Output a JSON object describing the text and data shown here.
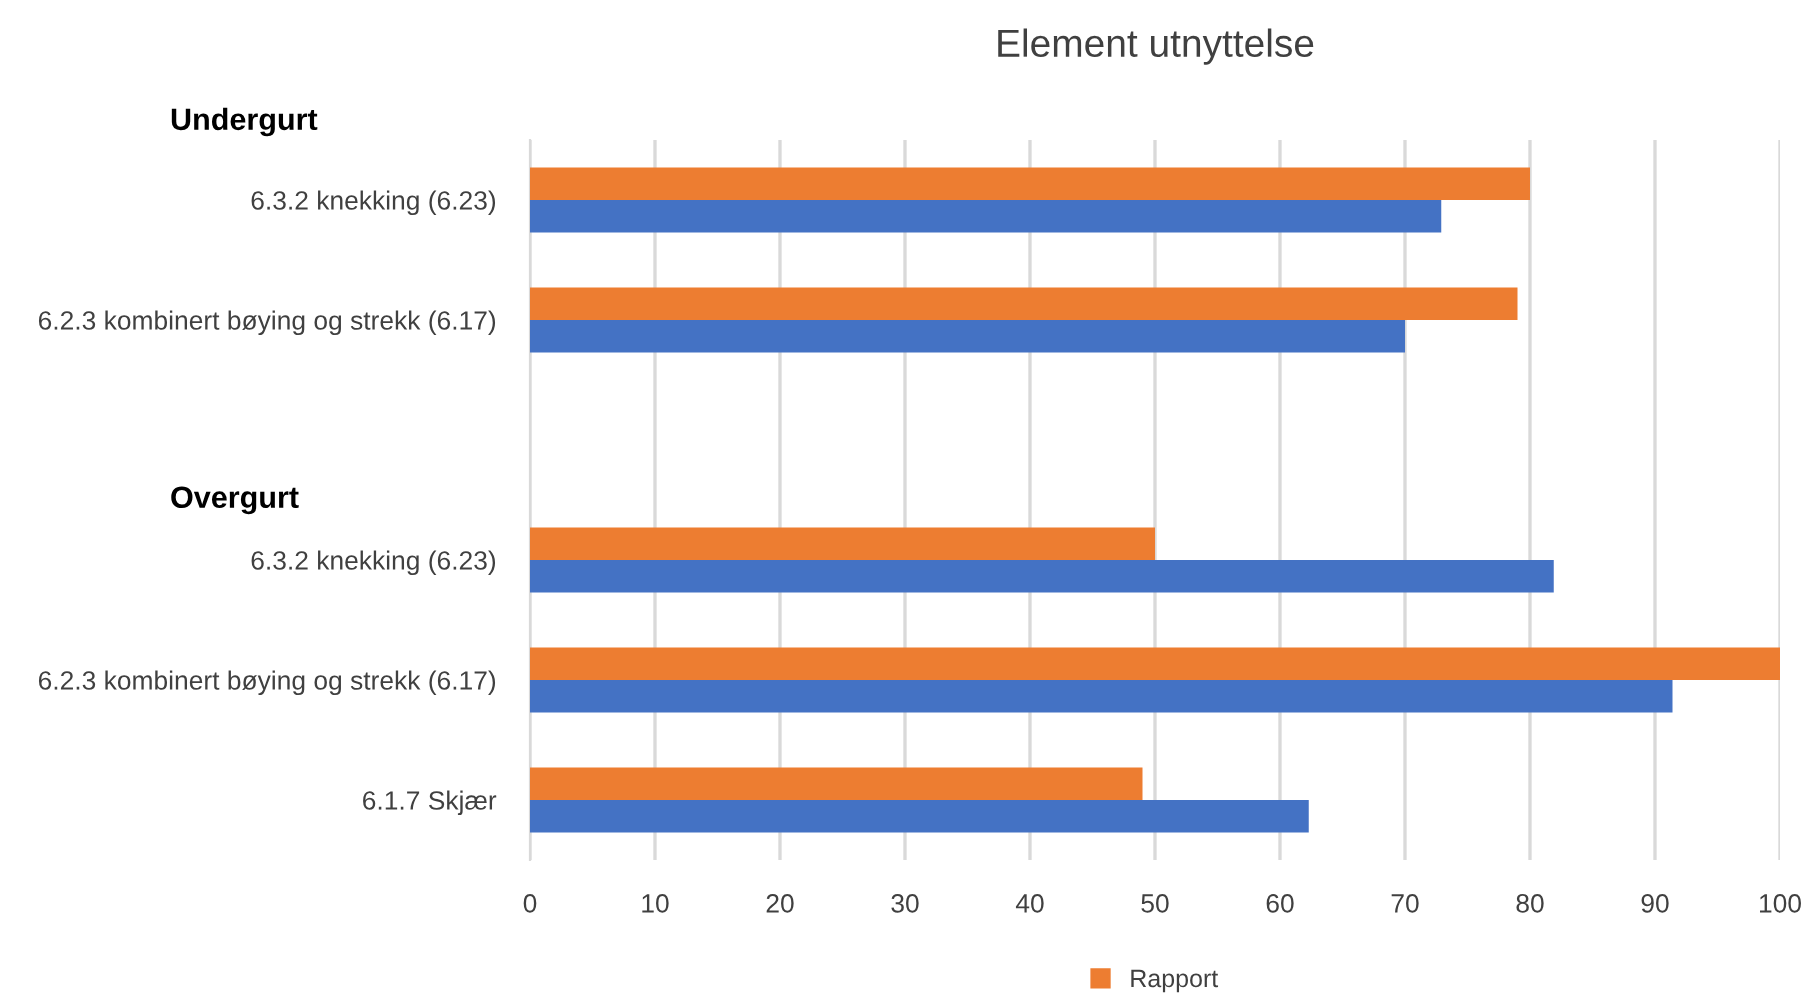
{
  "chart_data": {
    "type": "bar",
    "orientation": "horizontal",
    "title": "Element utnyttelse",
    "categories": [
      "6.3.2 knekking (6.23)",
      "6.2.3 kombinert bøying og strekk (6.17)",
      null,
      "6.3.2 knekking (6.23)",
      "6.2.3 kombinert bøying og strekk (6.17)",
      "6.1.7 Skjær"
    ],
    "series": [
      {
        "name": "Rapport",
        "color": "#ed7d31",
        "values": [
          80,
          79,
          null,
          50,
          100,
          49
        ]
      },
      {
        "color": "#4472c4",
        "values": [
          72.9,
          70,
          null,
          81.9,
          91.4,
          62.3
        ]
      }
    ],
    "xlim": [
      0,
      100
    ],
    "xticks": [
      0,
      10,
      20,
      30,
      40,
      50,
      60,
      70,
      80,
      90,
      100
    ],
    "grid": "x",
    "legend": "bottom",
    "annotations": [
      "Undergurt",
      "Overgurt"
    ]
  }
}
